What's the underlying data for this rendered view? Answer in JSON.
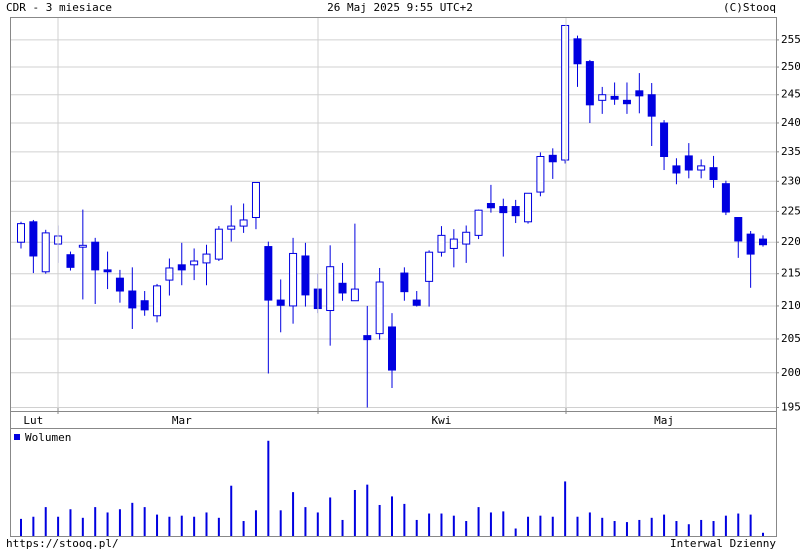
{
  "header": {
    "left": "CDR - 3 miesiace",
    "center": "26 Maj 2025 9:55 UTC+2",
    "right": "(C)Stooq"
  },
  "footer": {
    "left": "https://stooq.pl/",
    "right": "Interwal Dzienny"
  },
  "chart_data": [
    {
      "type": "candlestick",
      "log_scale": true,
      "grid": true,
      "up_color": "#ffffff",
      "down_color": "#0000e0",
      "edge_color": "#0000e0",
      "categories": [
        null,
        "Lut",
        null,
        null,
        null,
        null,
        null,
        null,
        null,
        null,
        null,
        null,
        null,
        "Mar",
        null,
        null,
        null,
        null,
        null,
        null,
        null,
        null,
        null,
        null,
        null,
        null,
        null,
        null,
        null,
        null,
        null,
        null,
        null,
        null,
        "Kwi",
        null,
        null,
        null,
        null,
        null,
        null,
        null,
        null,
        null,
        null,
        null,
        null,
        null,
        null,
        null,
        null,
        null,
        "Maj",
        null,
        null,
        null,
        null,
        null,
        null,
        null,
        null
      ],
      "open": [
        220,
        223.3,
        215.3,
        219.7,
        218,
        219.2,
        220,
        215.6,
        214.3,
        212.3,
        210.8,
        208.5,
        214,
        216.4,
        216.4,
        216.7,
        217.3,
        222.1,
        222.6,
        224,
        219.3,
        210.9,
        210,
        217.8,
        212.6,
        209.3,
        213.5,
        210.8,
        205.5,
        205.8,
        206.8,
        215.1,
        210.9,
        213.8,
        218.4,
        219,
        219.7,
        221.1,
        226.3,
        225.8,
        225.8,
        223.3,
        228.2,
        234.4,
        233.6,
        255.2,
        251,
        244,
        244.7,
        244,
        245.7,
        245,
        240,
        232.6,
        234.3,
        231.9,
        232.3,
        229.6,
        224,
        221.3,
        220.5
      ],
      "high": [
        223.3,
        223.6,
        222,
        222.7,
        218.5,
        225.3,
        220.7,
        218.5,
        215.6,
        216,
        212.3,
        213.4,
        217.4,
        219.9,
        219,
        219.6,
        222.6,
        226,
        226.3,
        229.8,
        220.1,
        214.1,
        220.7,
        219.9,
        215,
        219.5,
        216.7,
        223,
        210,
        215.9,
        208.9,
        216,
        212.3,
        218.7,
        222.6,
        222.1,
        222.7,
        225.3,
        229.4,
        227.1,
        226.9,
        228,
        234.9,
        235.6,
        257.7,
        255.8,
        251.3,
        246.4,
        247.2,
        247.2,
        248.9,
        247.1,
        240.5,
        233.9,
        236.5,
        233.7,
        234.3,
        230.1,
        224,
        221.8,
        221.1
      ],
      "low": [
        219,
        215.1,
        215,
        216.7,
        215.5,
        211,
        210.3,
        212.6,
        210.5,
        206.5,
        208.5,
        207.5,
        211.6,
        213.2,
        214,
        213.2,
        217,
        220.1,
        221.5,
        222.1,
        199.9,
        206,
        207.3,
        209.9,
        208.9,
        204,
        210.8,
        210.8,
        195,
        204.9,
        197.8,
        210.8,
        209.9,
        209.9,
        217.7,
        216,
        216.7,
        220.5,
        224.8,
        217.7,
        223.1,
        223,
        227.5,
        230.4,
        233,
        246.4,
        240,
        241.6,
        243.2,
        241.6,
        241.7,
        236,
        231.9,
        229.5,
        230.5,
        230.5,
        228.9,
        224.4,
        217.5,
        212.8,
        219.3
      ],
      "close": [
        223,
        217.8,
        221.5,
        221,
        216,
        219.5,
        215.6,
        215.3,
        212.3,
        209.7,
        209.4,
        213.1,
        215.9,
        215.6,
        217,
        218.1,
        222.1,
        222.6,
        223.6,
        229.8,
        210.9,
        210.1,
        218.2,
        211.7,
        209.6,
        216.1,
        212,
        212.6,
        204.9,
        213.7,
        200.4,
        212.2,
        210.1,
        218.4,
        221.1,
        220.5,
        221.6,
        225.2,
        225.6,
        224.8,
        224.3,
        228,
        234.2,
        233.3,
        257.7,
        250.6,
        243.2,
        245,
        244.2,
        243.4,
        244.8,
        241.2,
        234.2,
        231.4,
        231.9,
        232.6,
        230.3,
        224.9,
        220.2,
        218.1,
        219.6
      ],
      "ylim": [
        194.5,
        259.3
      ],
      "yticks": [
        195,
        200,
        205,
        210,
        215,
        220,
        225,
        230,
        235,
        240,
        245,
        250,
        255
      ]
    },
    {
      "type": "bar",
      "name": "Wolumen",
      "color": "#0000e0",
      "ylim": [
        0,
        100
      ],
      "values": [
        16,
        18,
        27,
        18,
        25,
        17,
        27,
        22,
        25,
        31,
        27,
        20,
        18,
        19,
        18,
        22,
        17,
        47,
        14,
        24,
        89,
        24,
        41,
        27,
        22,
        36,
        15,
        43,
        48,
        29,
        37,
        30,
        15,
        21,
        21,
        19,
        14,
        27,
        22,
        23,
        7,
        18,
        19,
        18,
        51,
        18,
        22,
        17,
        14,
        13,
        15,
        17,
        20,
        14,
        11,
        15,
        14,
        19,
        21,
        20,
        3
      ]
    }
  ]
}
